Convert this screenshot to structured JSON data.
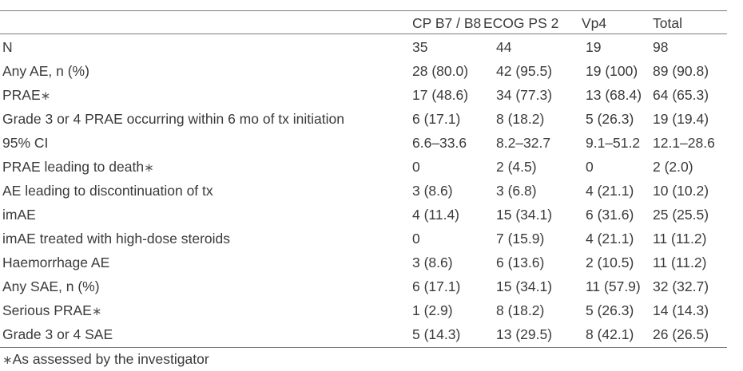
{
  "table": {
    "headers": [
      "",
      "CP B7 / B8",
      "ECOG PS 2",
      "Vp4",
      "Total"
    ],
    "rows": [
      {
        "label": "N",
        "star": "",
        "values": [
          "35",
          "44",
          "19",
          "98"
        ]
      },
      {
        "label": "Any AE, n (%)",
        "star": "",
        "values": [
          "28 (80.0)",
          "42 (95.5)",
          "19 (100)",
          "89 (90.8)"
        ]
      },
      {
        "label": "PRAE",
        "star": "∗",
        "values": [
          "17 (48.6)",
          "34 (77.3)",
          "13 (68.4)",
          "64 (65.3)"
        ]
      },
      {
        "label": "Grade 3 or 4 PRAE occurring within 6 mo of tx initiation",
        "star": "",
        "values": [
          "6 (17.1)",
          "8 (18.2)",
          "5 (26.3)",
          "19 (19.4)"
        ]
      },
      {
        "label": "95% CI",
        "star": "",
        "values": [
          "6.6–33.6",
          "8.2–32.7",
          "9.1–51.2",
          "12.1–28.6"
        ]
      },
      {
        "label": "PRAE leading to death",
        "star": "∗",
        "values": [
          "0",
          "2 (4.5)",
          "0",
          "2 (2.0)"
        ]
      },
      {
        "label": "AE leading to discontinuation of tx",
        "star": "",
        "values": [
          "3 (8.6)",
          "3 (6.8)",
          "4 (21.1)",
          "10 (10.2)"
        ]
      },
      {
        "label": "imAE",
        "star": "",
        "values": [
          "4 (11.4)",
          "15 (34.1)",
          "6 (31.6)",
          "25 (25.5)"
        ]
      },
      {
        "label": "imAE treated with high-dose steroids",
        "star": "",
        "values": [
          "0",
          "7 (15.9)",
          "4 (21.1)",
          "11 (11.2)"
        ]
      },
      {
        "label": "Haemorrhage AE",
        "star": "",
        "values": [
          "3 (8.6)",
          "6 (13.6)",
          "2 (10.5)",
          "11 (11.2)"
        ]
      },
      {
        "label": "Any SAE, n (%)",
        "star": "",
        "values": [
          "6 (17.1)",
          "15 (34.1)",
          "11 (57.9)",
          "32 (32.7)"
        ]
      },
      {
        "label": "Serious PRAE",
        "star": "∗",
        "values": [
          "1 (2.9)",
          "8 (18.2)",
          "5 (26.3)",
          "14 (14.3)"
        ]
      },
      {
        "label": "Grade 3 or 4 SAE",
        "star": "",
        "values": [
          "5 (14.3)",
          "13 (29.5)",
          "8 (42.1)",
          "26 (26.5)"
        ]
      }
    ]
  },
  "footnote": {
    "star": "∗",
    "text": "As assessed by the investigator"
  }
}
